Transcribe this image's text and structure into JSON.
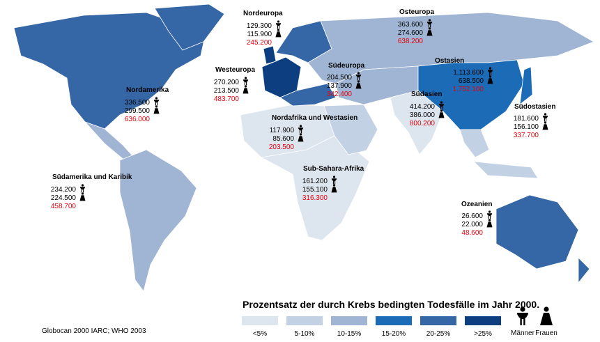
{
  "title": "Prozentsatz der durch Krebs bedingten Todesfälle im Jahr 2000.",
  "source": "Globocan 2000 IARC; WHO 2003",
  "legend": {
    "classes": [
      {
        "label": "<5%",
        "color": "#dde5ef"
      },
      {
        "label": "5-10%",
        "color": "#c3d1e4"
      },
      {
        "label": "10-15%",
        "color": "#9fb5d3"
      },
      {
        "label": "15-20%",
        "color": "#1c6bb6"
      },
      {
        "label": "20-25%",
        "color": "#3566a5"
      },
      {
        "label": ">25%",
        "color": "#0d3f80"
      }
    ],
    "men": "Männer",
    "women": "Frauen"
  },
  "regions": [
    {
      "name": "Nordeuropa",
      "men": "129.300",
      "women": "115.900",
      "total": "245.200"
    },
    {
      "name": "Osteuropa",
      "men": "363.600",
      "women": "274.600",
      "total": "638.200"
    },
    {
      "name": "Westeuropa",
      "men": "270.200",
      "women": "213.500",
      "total": "483.700"
    },
    {
      "name": "Südeuropa",
      "men": "204.500",
      "women": "137.900",
      "total": "342.400"
    },
    {
      "name": "Ostasien",
      "men": "1.113.600",
      "women": "638.500",
      "total": "1.752.100"
    },
    {
      "name": "Südasien",
      "men": "414.200",
      "women": "386.000",
      "total": "800.200"
    },
    {
      "name": "Nordamerika",
      "men": "336.500",
      "women": "299.500",
      "total": "636.000"
    },
    {
      "name": "Nordafrika und Westasien",
      "men": "117.900",
      "women": "85.600",
      "total": "203.500"
    },
    {
      "name": "Sub-Sahara-Afrika",
      "men": "161.200",
      "women": "155.100",
      "total": "316.300"
    },
    {
      "name": "Südostasien",
      "men": "181.600",
      "women": "156.100",
      "total": "337.700"
    },
    {
      "name": "Südamerika und Karibik",
      "men": "234.200",
      "women": "224.500",
      "total": "458.700"
    },
    {
      "name": "Ozeanien",
      "men": "26.600",
      "women": "22.000",
      "total": "48.600"
    }
  ]
}
